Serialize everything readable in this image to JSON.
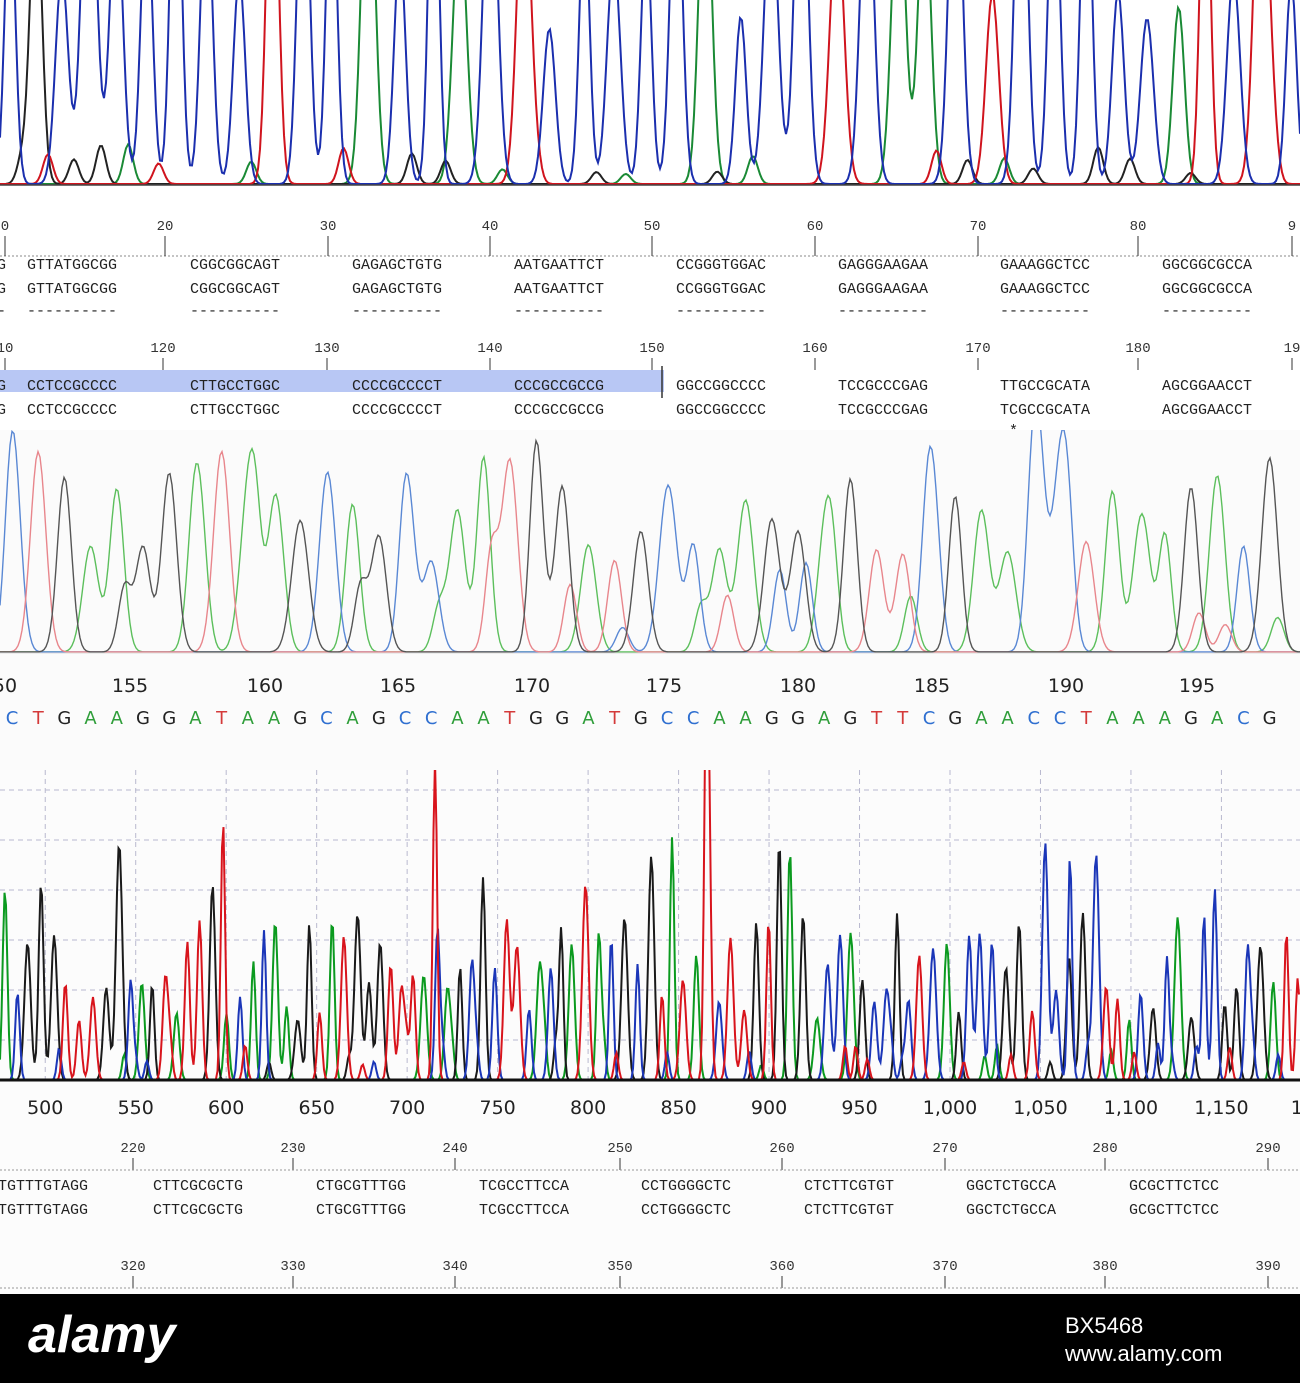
{
  "colors": {
    "A": "#0b9a1f",
    "C": "#1b36b8",
    "G": "#1a1a1a",
    "T": "#d8141c",
    "grid": "#b9b9cf",
    "axis": "#222222",
    "highlight": "#b8c7f4",
    "labelA": "#2f9e3a",
    "labelC": "#2f6fd0",
    "labelG": "#222222",
    "labelT": "#d43a3a"
  },
  "chart_data": [
    {
      "type": "line",
      "panel": "electropherogram-top",
      "series": [],
      "seq_ruler": {
        "ticks": [
          "0",
          "20",
          "30",
          "40",
          "50",
          "60",
          "70",
          "80",
          "9"
        ]
      },
      "alignment_row_1": {
        "line1": [
          "G",
          "GTTATGGCGG",
          "CGGCGGCAGT",
          "GAGAGCTGTG",
          "AATGAATTCT",
          "CCGGGTGGAC",
          "GAGGGAAGAA",
          "GAAAGGCTCC",
          "GGCGGCGCCA"
        ],
        "line2": [
          "G",
          "GTTATGGCGG",
          "CGGCGGCAGT",
          "GAGAGCTGTG",
          "AATGAATTCT",
          "CCGGGTGGAC",
          "GAGGGAAGAA",
          "GAAAGGCTCC",
          "GGCGGCGCCA"
        ],
        "match": [
          "-",
          "----------",
          "----------",
          "----------",
          "----------",
          "----------",
          "----------",
          "----------",
          "----------"
        ]
      },
      "seq_ruler_2": {
        "ticks": [
          "10",
          "120",
          "130",
          "140",
          "150",
          "160",
          "170",
          "180",
          "19"
        ]
      },
      "alignment_row_2": {
        "line1": [
          "G",
          "CCTCCGCCCC",
          "CTTGCCTGGC",
          "CCCCGCCCCT",
          "CCCGCCGCCG",
          "GGCCGGCCCC",
          "TCCGCCCGAG",
          "TTGCCGCATA",
          "AGCGGAACCT"
        ],
        "line2": [
          "G",
          "CCTCCGCCCC",
          "CTTGCCTGGC",
          "CCCCGCCCCT",
          "CCCGCCGCCG",
          "GGCCGGCCCC",
          "TCCGCCCGAG",
          "TCGCCGCATA",
          "AGCGGAACCT"
        ],
        "match": [
          "-",
          "----------",
          "----------",
          "----------",
          "----------",
          "----------",
          "----------",
          "-*--------",
          "----------"
        ]
      }
    },
    {
      "type": "line",
      "panel": "electropherogram-middle",
      "xticks": [
        "50",
        "155",
        "160",
        "165",
        "170",
        "175",
        "180",
        "185",
        "190",
        "195"
      ],
      "basecalls": "CTGAAGGATAAGCAGCCAATGGATGCCAAGGAGTTCGAACCTAAAGACG"
    },
    {
      "type": "line",
      "panel": "electropherogram-bottom",
      "xticks": [
        "500",
        "550",
        "600",
        "650",
        "700",
        "750",
        "800",
        "850",
        "900",
        "950",
        "1,000",
        "1,050",
        "1,100",
        "1,150",
        "1,20"
      ],
      "xlim": [
        475,
        1210
      ],
      "grid": true,
      "seq_ruler": {
        "ticks": [
          "220",
          "230",
          "240",
          "250",
          "260",
          "270",
          "280",
          "290"
        ]
      },
      "alignment": {
        "line1": [
          "TGTTTGTAGG",
          "CTTCGCGCTG",
          "CTGCGTTTGG",
          "TCGCCTTCCA",
          "CCTGGGGCTC",
          "CTCTTCGTGT",
          "GGCTCTGCCA",
          "GCGCTTCTCC"
        ],
        "line2": [
          "TGTTTGTAGG",
          "CTTCGCGCTG",
          "CTGCGTTTGG",
          "TCGCCTTCCA",
          "CCTGGGGCTC",
          "CTCTTCGTGT",
          "GGCTCTGCCA",
          "GCGCTTCTCC"
        ]
      },
      "seq_ruler_2": {
        "ticks": [
          "320",
          "330",
          "340",
          "350",
          "360",
          "370",
          "380",
          "390"
        ]
      }
    }
  ],
  "footer": {
    "stock_logo": "alamy",
    "image_id": "BX5468",
    "website": "www.alamy.com"
  }
}
